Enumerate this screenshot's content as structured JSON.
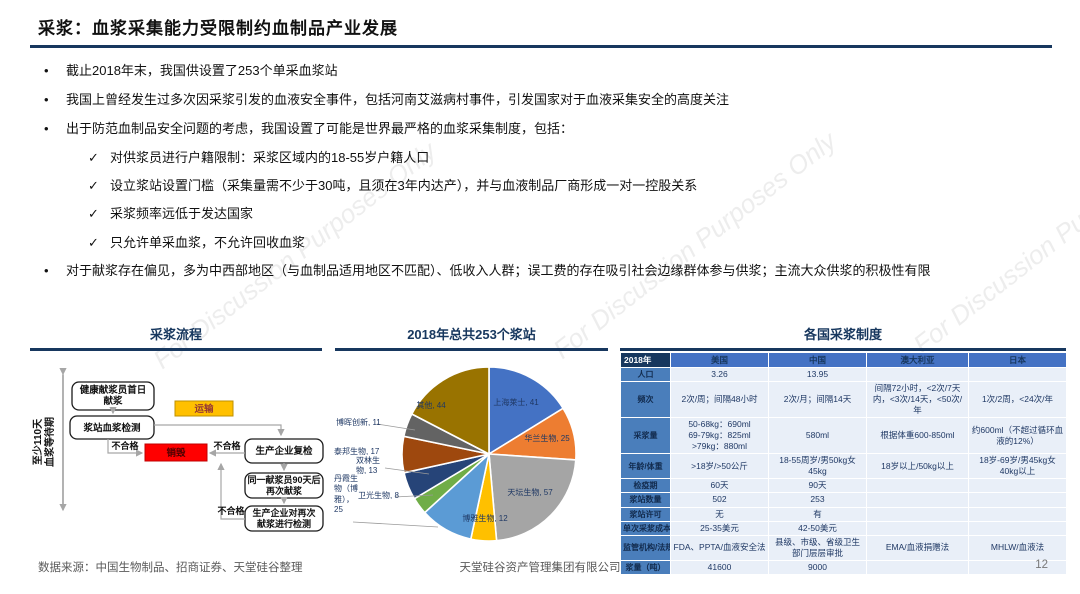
{
  "slide": {
    "title": "采浆：血浆采集能力受限制约血制品产业发展",
    "watermark": "For Discussion Purposes Only"
  },
  "bullets": [
    {
      "marker": "•",
      "level": 1,
      "text": "截止2018年末，我国供设置了253个单采血浆站"
    },
    {
      "marker": "•",
      "level": 1,
      "text": "我国上曾经发生过多次因采浆引发的血液安全事件，包括河南艾滋病村事件，引发国家对于血液采集安全的高度关注"
    },
    {
      "marker": "•",
      "level": 1,
      "text": "出于防范血制品安全问题的考虑，我国设置了可能是世界最严格的血浆采集制度，包括："
    },
    {
      "marker": "✓",
      "level": 2,
      "text": "对供浆员进行户籍限制：采浆区域内的18-55岁户籍人口"
    },
    {
      "marker": "✓",
      "level": 2,
      "text": "设立浆站设置门槛（采集量需不少于30吨，且须在3年内达产），并与血液制品厂商形成一对一控股关系"
    },
    {
      "marker": "✓",
      "level": 2,
      "text": "采浆频率远低于发达国家"
    },
    {
      "marker": "✓",
      "level": 2,
      "text": "只允许单采血浆，不允许回收血浆"
    },
    {
      "marker": "•",
      "level": 1,
      "text": "对于献浆存在偏见，多为中西部地区（与血制品适用地区不匹配）、低收入人群；误工费的存在吸引社会边缘群体参与供浆；主流大众供浆的积极性有限"
    }
  ],
  "sections": {
    "flow": "采浆流程",
    "pie": "2018年总共253个浆站",
    "table": "各国采浆制度"
  },
  "flowchart": {
    "duration_line1": "至少110天",
    "duration_line2": "血浆等待期",
    "box_first": [
      "健康献浆员首日",
      "献浆"
    ],
    "box_station_test": "浆站血浆检测",
    "box_transport": "运输",
    "box_destroy": "销毁",
    "box_recheck": "生产企业复检",
    "box_again": [
      "同一献浆员90天后",
      "再次献浆"
    ],
    "box_retest": [
      "生产企业对再次",
      "献浆进行检测"
    ],
    "fail_label": "不合格"
  },
  "chart_data": {
    "type": "pie",
    "title": "2018年总共253个浆站",
    "total": 253,
    "labels": [
      "上海莱士",
      "华兰生物",
      "天坛生物",
      "博雅生物",
      "丹霞生物（博雅）",
      "卫光生物",
      "双林生物",
      "泰邦生物",
      "博晖创新",
      "其他"
    ],
    "values": [
      41,
      25,
      57,
      12,
      25,
      8,
      13,
      17,
      11,
      44
    ],
    "display_labels": [
      "上海莱士, 41",
      "华兰生物, 25",
      "天坛生物, 57",
      "博雅生物, 12",
      "丹霞生物（博雅），25",
      "卫光生物, 8",
      "双林生物, 13",
      "泰邦生物, 17",
      "博晖创新, 11",
      "其他, 44"
    ],
    "colors": [
      "#4472C4",
      "#ED7D31",
      "#A5A5A5",
      "#FFC000",
      "#5B9BD5",
      "#70AD47",
      "#264478",
      "#9E480E",
      "#636363",
      "#997300"
    ],
    "start_angle_deg": 0,
    "direction": "clockwise",
    "legend": "none"
  },
  "table": {
    "corner": "2018年",
    "columns": [
      "美国",
      "中国",
      "澳大利亚",
      "日本"
    ],
    "rows": [
      {
        "label": "人口",
        "cells": [
          "3.26",
          "13.95",
          "",
          ""
        ]
      },
      {
        "label": "频次",
        "cells": [
          "2次/周；间隔48小时",
          "2次/月；间隔14天",
          "间隔72小时，<2次/7天内，<3次/14天，<50次/年",
          "1次/2周，<24次/年"
        ]
      },
      {
        "label": "采浆量",
        "cells": [
          "50-68kg：690ml\n69-79kg：825ml\n>79kg：880ml",
          "580ml",
          "根据体重600-850ml",
          "约600ml（不超过循环血液的12%）"
        ]
      },
      {
        "label": "年龄/体重",
        "cells": [
          ">18岁/>50公斤",
          "18-55周岁/男50kg女45kg",
          "18岁以上/50kg以上",
          "18岁-69岁/男45kg女40kg以上"
        ]
      },
      {
        "label": "检疫期",
        "cells": [
          "60天",
          "90天",
          "",
          ""
        ]
      },
      {
        "label": "浆站数量",
        "cells": [
          "502",
          "253",
          "",
          ""
        ]
      },
      {
        "label": "浆站许可",
        "cells": [
          "无",
          "有",
          "",
          ""
        ]
      },
      {
        "label": "单次采浆成本",
        "cells": [
          "25-35美元",
          "42-50美元",
          "",
          ""
        ]
      },
      {
        "label": "监管机构/法规",
        "cells": [
          "FDA、PPTA/血液安全法",
          "县级、市级、省级卫生部门层层审批",
          "EMA/血液捐赠法",
          "MHLW/血液法"
        ]
      },
      {
        "label": "浆量（吨）",
        "cells": [
          "41600",
          "9000",
          "",
          ""
        ]
      }
    ]
  },
  "footer": {
    "source": "数据来源：中国生物制品、招商证券、天堂硅谷整理",
    "company": "天堂硅谷资产管理集团有限公司",
    "page": "12"
  }
}
